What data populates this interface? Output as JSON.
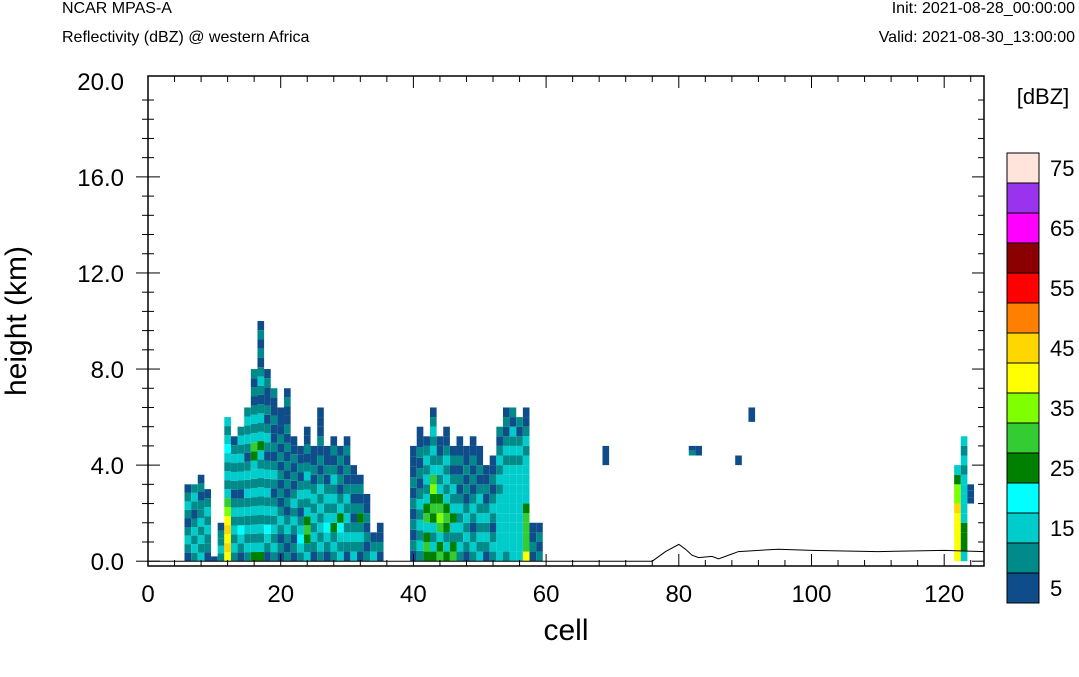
{
  "header": {
    "model": "NCAR MPAS-A",
    "field": "Reflectivity (dBZ) @ western Africa",
    "init": "Init: 2021-08-28_00:00:00",
    "valid": "Valid: 2021-08-30_13:00:00"
  },
  "colorbar": {
    "unit": "[dBZ]",
    "levels": [
      5,
      10,
      15,
      20,
      25,
      30,
      35,
      40,
      45,
      50,
      55,
      60,
      65,
      70,
      75
    ],
    "labels": [
      "5",
      "15",
      "25",
      "35",
      "45",
      "55",
      "65",
      "75"
    ],
    "colors": [
      "#0f4d8a",
      "#008a8a",
      "#00cccc",
      "#00ffff",
      "#008000",
      "#33cc33",
      "#80ff00",
      "#ffff00",
      "#ffd700",
      "#ff8000",
      "#ff0000",
      "#8b0000",
      "#ff00ff",
      "#9933ee",
      "#ffe4dc"
    ]
  },
  "chart_data": {
    "type": "heatmap",
    "title": "Reflectivity (dBZ) @ western Africa",
    "xlabel": "cell",
    "ylabel": "height (km)",
    "xlim": [
      0,
      126
    ],
    "ylim": [
      -0.2,
      20.2
    ],
    "xticks": [
      0,
      20,
      40,
      60,
      80,
      100,
      120
    ],
    "yticks": [
      0,
      4,
      8,
      12,
      16,
      20
    ],
    "xtick_labels": [
      "0",
      "20",
      "40",
      "60",
      "80",
      "100",
      "120"
    ],
    "ytick_labels": [
      "0.0",
      "4.0",
      "8.0",
      "12.0",
      "16.0",
      "20.0"
    ],
    "grid": false,
    "legend": "colorbar-right",
    "columns": [
      {
        "x": 6,
        "top": 3.2,
        "levels": [
          5,
          10,
          15,
          10,
          5,
          10,
          15,
          10,
          5
        ]
      },
      {
        "x": 7,
        "top": 3.2,
        "levels": [
          10,
          15,
          10,
          15,
          10,
          5,
          10,
          15,
          10
        ]
      },
      {
        "x": 8,
        "top": 3.6,
        "levels": [
          15,
          10,
          15,
          10,
          15,
          10,
          10,
          5,
          10,
          5
        ]
      },
      {
        "x": 9,
        "top": 3.0,
        "levels": [
          5,
          10,
          10,
          15,
          10,
          15,
          10,
          5
        ]
      },
      {
        "x": 10,
        "top": 0.2,
        "levels": [
          5
        ]
      },
      {
        "x": 11,
        "top": 1.6,
        "levels": [
          10,
          15,
          10,
          10,
          5
        ]
      },
      {
        "x": 12,
        "top": 6.0,
        "levels": [
          40,
          45,
          40,
          45,
          40,
          35,
          30,
          15,
          10,
          15,
          10,
          15,
          20,
          15,
          10,
          15
        ]
      },
      {
        "x": 13,
        "top": 5.2,
        "levels": [
          10,
          15,
          10,
          15,
          10,
          15,
          10,
          5,
          10,
          15,
          10,
          15,
          10,
          5
        ]
      },
      {
        "x": 14,
        "top": 5.6,
        "levels": [
          5,
          10,
          15,
          20,
          10,
          15,
          10,
          5,
          10,
          15,
          10,
          15,
          10,
          15,
          10
        ]
      },
      {
        "x": 15,
        "top": 6.4,
        "levels": [
          10,
          15,
          10,
          15,
          10,
          15,
          10,
          15,
          10,
          15,
          10,
          5,
          10,
          15,
          10,
          15,
          10
        ]
      },
      {
        "x": 16,
        "top": 8.0,
        "levels": [
          25,
          15,
          10,
          15,
          10,
          15,
          10,
          15,
          10,
          15,
          15,
          25,
          30,
          15,
          10,
          15,
          10,
          5,
          10,
          5,
          10
        ]
      },
      {
        "x": 17,
        "top": 10.0,
        "levels": [
          25,
          15,
          10,
          15,
          10,
          15,
          10,
          15,
          10,
          15,
          10,
          15,
          25,
          15,
          10,
          15,
          10,
          5,
          10,
          15,
          10,
          5,
          10,
          5,
          10,
          5
        ]
      },
      {
        "x": 18,
        "top": 8.0,
        "levels": [
          5,
          10,
          15,
          20,
          10,
          15,
          10,
          15,
          10,
          15,
          10,
          5,
          10,
          15,
          10,
          5,
          10,
          5,
          5,
          10,
          5
        ]
      },
      {
        "x": 19,
        "top": 7.2,
        "levels": [
          10,
          15,
          10,
          15,
          10,
          15,
          10,
          5,
          10,
          15,
          10,
          5,
          10,
          5,
          5,
          10,
          5,
          5,
          10
        ]
      },
      {
        "x": 20,
        "top": 6.4,
        "levels": [
          5,
          10,
          5,
          10,
          15,
          10,
          5,
          10,
          5,
          10,
          5,
          10,
          5,
          10,
          5,
          5,
          5
        ]
      },
      {
        "x": 21,
        "top": 7.2,
        "levels": [
          10,
          5,
          10,
          15,
          10,
          5,
          10,
          5,
          10,
          5,
          10,
          5,
          10,
          5,
          10,
          5,
          5,
          10,
          5
        ]
      },
      {
        "x": 22,
        "top": 5.2,
        "levels": [
          5,
          10,
          5,
          10,
          15,
          10,
          15,
          10,
          5,
          10,
          5,
          10,
          5,
          5
        ]
      },
      {
        "x": 23,
        "top": 4.8,
        "levels": [
          10,
          15,
          20,
          15,
          10,
          5,
          10,
          15,
          10,
          5,
          10,
          5,
          5
        ]
      },
      {
        "x": 24,
        "top": 5.6,
        "levels": [
          15,
          10,
          25,
          30,
          25,
          15,
          10,
          15,
          10,
          15,
          10,
          5,
          10,
          5,
          5
        ]
      },
      {
        "x": 25,
        "top": 4.8,
        "levels": [
          5,
          10,
          15,
          10,
          15,
          10,
          15,
          10,
          5,
          10,
          5,
          5
        ]
      },
      {
        "x": 26,
        "top": 6.4,
        "levels": [
          10,
          15,
          10,
          15,
          10,
          15,
          10,
          15,
          10,
          5,
          10,
          5,
          10,
          5,
          5,
          5
        ]
      },
      {
        "x": 27,
        "top": 4.8,
        "levels": [
          5,
          10,
          15,
          20,
          15,
          10,
          15,
          10,
          5,
          10,
          5,
          5
        ]
      },
      {
        "x": 28,
        "top": 5.2,
        "levels": [
          10,
          15,
          10,
          25,
          15,
          10,
          15,
          10,
          15,
          10,
          5,
          10,
          5
        ]
      },
      {
        "x": 29,
        "top": 4.8,
        "levels": [
          15,
          10,
          15,
          20,
          25,
          15,
          10,
          5,
          10,
          5,
          10,
          5
        ]
      },
      {
        "x": 30,
        "top": 5.2,
        "levels": [
          5,
          10,
          15,
          10,
          15,
          10,
          15,
          10,
          5,
          10,
          5,
          10,
          5
        ]
      },
      {
        "x": 31,
        "top": 4.0,
        "levels": [
          15,
          10,
          15,
          10,
          5,
          10,
          5,
          10,
          5,
          5
        ]
      },
      {
        "x": 32,
        "top": 3.6,
        "levels": [
          5,
          10,
          15,
          10,
          25,
          10,
          5,
          10,
          5
        ]
      },
      {
        "x": 33,
        "top": 2.8,
        "levels": [
          10,
          5,
          10,
          5,
          10,
          5,
          5
        ]
      },
      {
        "x": 34,
        "top": 1.2,
        "levels": [
          15,
          10,
          5
        ]
      },
      {
        "x": 35,
        "top": 1.6,
        "levels": [
          5,
          10,
          5,
          5
        ]
      },
      {
        "x": 40,
        "top": 4.8,
        "levels": [
          5,
          10,
          5,
          10,
          5,
          10,
          5,
          10,
          5,
          5,
          5
        ]
      },
      {
        "x": 41,
        "top": 5.6,
        "levels": [
          10,
          15,
          10,
          15,
          10,
          15,
          10,
          5,
          10,
          5,
          10,
          5,
          5
        ]
      },
      {
        "x": 42,
        "top": 5.2,
        "levels": [
          25,
          30,
          25,
          15,
          30,
          25,
          15,
          10,
          15,
          10,
          15,
          10,
          5
        ]
      },
      {
        "x": 43,
        "top": 6.4,
        "levels": [
          25,
          15,
          10,
          15,
          25,
          30,
          25,
          35,
          30,
          15,
          10,
          15,
          10,
          15,
          10,
          5
        ]
      },
      {
        "x": 44,
        "top": 5.2,
        "levels": [
          30,
          25,
          15,
          30,
          35,
          30,
          25,
          15,
          10,
          15,
          10,
          5,
          5
        ]
      },
      {
        "x": 45,
        "top": 5.6,
        "levels": [
          25,
          15,
          10,
          25,
          30,
          25,
          15,
          10,
          15,
          10,
          15,
          10,
          5,
          5
        ]
      },
      {
        "x": 46,
        "top": 4.8,
        "levels": [
          30,
          25,
          10,
          15,
          25,
          15,
          10,
          15,
          10,
          5,
          10,
          5
        ]
      },
      {
        "x": 47,
        "top": 5.2,
        "levels": [
          10,
          15,
          10,
          15,
          10,
          15,
          10,
          5,
          10,
          5,
          10,
          5,
          5
        ]
      },
      {
        "x": 48,
        "top": 4.8,
        "levels": [
          5,
          10,
          15,
          10,
          15,
          10,
          5,
          10,
          5,
          10,
          5,
          5
        ]
      },
      {
        "x": 49,
        "top": 5.2,
        "levels": [
          10,
          15,
          10,
          5,
          10,
          15,
          10,
          5,
          10,
          5,
          10,
          5,
          5
        ]
      },
      {
        "x": 50,
        "top": 4.8,
        "levels": [
          15,
          10,
          15,
          10,
          15,
          10,
          15,
          10,
          5,
          10,
          5,
          5
        ]
      },
      {
        "x": 51,
        "top": 4.0,
        "levels": [
          5,
          10,
          15,
          10,
          15,
          10,
          5,
          10,
          5,
          5
        ]
      },
      {
        "x": 52,
        "top": 4.4,
        "levels": [
          10,
          15,
          10,
          5,
          10,
          15,
          10,
          5,
          10,
          5,
          5
        ]
      },
      {
        "x": 53,
        "top": 5.6,
        "levels": [
          15,
          15,
          15,
          15,
          15,
          15,
          15,
          10,
          15,
          10,
          15,
          10,
          5,
          10
        ]
      },
      {
        "x": 54,
        "top": 6.4,
        "levels": [
          10,
          15,
          15,
          15,
          15,
          15,
          15,
          15,
          15,
          15,
          10,
          15,
          10,
          5,
          10,
          5
        ]
      },
      {
        "x": 55,
        "top": 6.4,
        "levels": [
          15,
          15,
          15,
          15,
          15,
          15,
          15,
          15,
          15,
          15,
          10,
          15,
          10,
          15,
          5,
          10
        ]
      },
      {
        "x": 56,
        "top": 6.0,
        "levels": [
          15,
          15,
          15,
          15,
          15,
          15,
          15,
          15,
          15,
          15,
          10,
          15,
          10,
          5,
          10
        ]
      },
      {
        "x": 57,
        "top": 6.4,
        "levels": [
          40,
          30,
          30,
          30,
          30,
          25,
          15,
          15,
          15,
          15,
          15,
          10,
          15,
          10,
          5,
          5
        ]
      },
      {
        "x": 58,
        "top": 1.6,
        "levels": [
          5,
          10,
          5,
          5
        ]
      },
      {
        "x": 59,
        "top": 1.6,
        "levels": [
          10,
          5,
          10,
          5
        ]
      },
      {
        "x": 69,
        "top": 4.8,
        "levels": [
          5,
          5
        ],
        "base": 4.0
      },
      {
        "x": 82,
        "top": 4.8,
        "levels": [
          10,
          5
        ],
        "base": 4.4
      },
      {
        "x": 83,
        "top": 4.8,
        "levels": [
          5
        ],
        "base": 4.4
      },
      {
        "x": 89,
        "top": 4.4,
        "levels": [
          5
        ],
        "base": 4.0
      },
      {
        "x": 91,
        "top": 6.4,
        "levels": [
          5
        ],
        "base": 5.8
      },
      {
        "x": 122,
        "top": 4.0,
        "levels": [
          40,
          40,
          40,
          40,
          40,
          45,
          35,
          35,
          25,
          15
        ]
      },
      {
        "x": 123,
        "top": 5.2,
        "levels": [
          15,
          25,
          25,
          25,
          15,
          15,
          15,
          15,
          15,
          10,
          15,
          10,
          15
        ]
      },
      {
        "x": 124,
        "top": 3.2,
        "levels": [
          5,
          5,
          5
        ],
        "base": 2.4
      }
    ],
    "terrain": {
      "x": [
        76,
        78,
        80,
        81,
        82,
        83,
        85,
        86,
        88,
        89,
        95,
        100,
        110,
        120,
        126
      ],
      "y": [
        0.0,
        0.4,
        0.7,
        0.5,
        0.25,
        0.15,
        0.2,
        0.1,
        0.3,
        0.4,
        0.5,
        0.45,
        0.4,
        0.45,
        0.4
      ]
    }
  }
}
